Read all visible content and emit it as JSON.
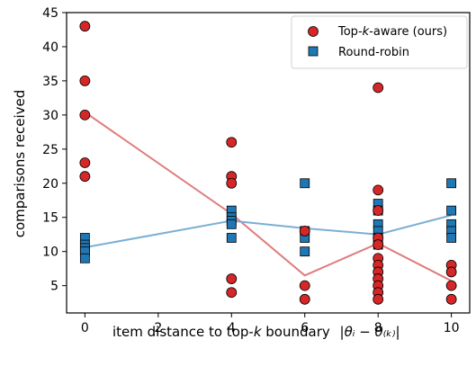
{
  "chart_data": {
    "type": "scatter",
    "xlabel": "item distance to top-",
    "xlabel_k": "k",
    "xlabel_rest": " boundary ",
    "xlabel_formula": "|θᵢ − θ₍ₖ₎|",
    "ylabel": "comparisons received",
    "xlim": [
      -0.5,
      10.5
    ],
    "ylim": [
      1,
      45
    ],
    "xticks": [
      0,
      2,
      4,
      6,
      8,
      10
    ],
    "yticks": [
      5,
      10,
      15,
      20,
      25,
      30,
      35,
      40,
      45
    ],
    "legend_position": "top-right",
    "series": [
      {
        "name": "Top-k-aware (ours)",
        "name_parts": [
          "Top-",
          "k",
          "-aware (ours)"
        ],
        "marker": "circle",
        "color": "#d62728",
        "points": [
          [
            0,
            43
          ],
          [
            0,
            35
          ],
          [
            0,
            30
          ],
          [
            0,
            23
          ],
          [
            0,
            21
          ],
          [
            4,
            26
          ],
          [
            4,
            21
          ],
          [
            4,
            20
          ],
          [
            4,
            6
          ],
          [
            4,
            4
          ],
          [
            6,
            13
          ],
          [
            6,
            5
          ],
          [
            6,
            3
          ],
          [
            8,
            34
          ],
          [
            8,
            19
          ],
          [
            8,
            16
          ],
          [
            8,
            12
          ],
          [
            8,
            11
          ],
          [
            8,
            9
          ],
          [
            8,
            8
          ],
          [
            8,
            7
          ],
          [
            8,
            6
          ],
          [
            8,
            5
          ],
          [
            8,
            4
          ],
          [
            8,
            3
          ],
          [
            10,
            8
          ],
          [
            10,
            7
          ],
          [
            10,
            5
          ],
          [
            10,
            3
          ]
        ],
        "trend": [
          [
            0,
            30.4
          ],
          [
            4,
            15.5
          ],
          [
            6,
            6.5
          ],
          [
            8,
            11.2
          ],
          [
            10,
            5.7
          ]
        ],
        "trend_color": "#e07c7c"
      },
      {
        "name": "Round-robin",
        "marker": "square",
        "color": "#1f77b4",
        "points": [
          [
            0,
            12
          ],
          [
            0,
            11
          ],
          [
            0,
            10.5
          ],
          [
            0,
            10
          ],
          [
            0,
            9
          ],
          [
            4,
            16
          ],
          [
            4,
            15
          ],
          [
            4,
            14.5
          ],
          [
            4,
            14
          ],
          [
            4,
            12
          ],
          [
            6,
            20
          ],
          [
            6,
            13
          ],
          [
            6,
            12
          ],
          [
            6,
            10
          ],
          [
            8,
            17
          ],
          [
            8,
            16
          ],
          [
            8,
            14
          ],
          [
            8,
            13
          ],
          [
            8,
            12
          ],
          [
            8,
            11
          ],
          [
            10,
            20
          ],
          [
            10,
            16
          ],
          [
            10,
            14
          ],
          [
            10,
            13
          ],
          [
            10,
            12
          ]
        ],
        "trend": [
          [
            0,
            10.6
          ],
          [
            4,
            14.5
          ],
          [
            6,
            13.4
          ],
          [
            8,
            12.5
          ],
          [
            10,
            15.3
          ]
        ],
        "trend_color": "#7aafd4"
      }
    ]
  }
}
